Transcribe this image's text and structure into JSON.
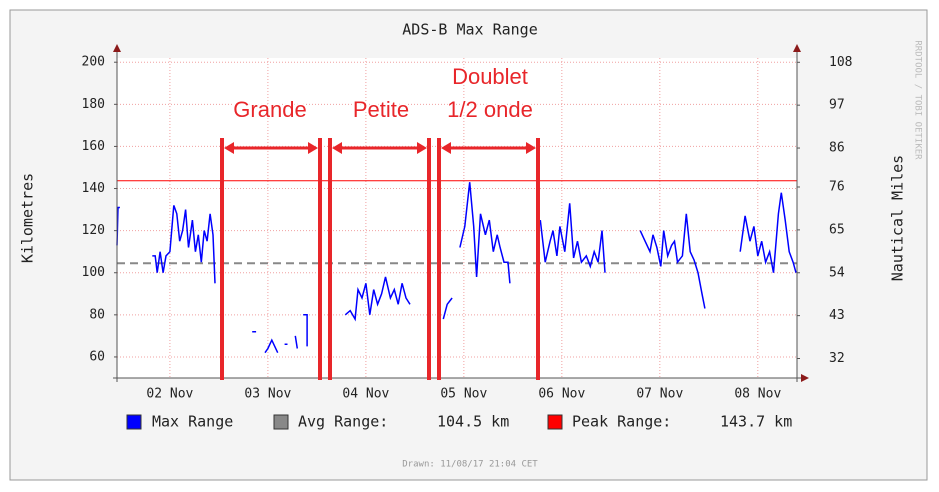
{
  "chart_data": {
    "type": "line",
    "title": "ADS-B Max Range",
    "y_label": "Kilometres",
    "y2_label": "Nautical Miles",
    "watermark": "RRDTOOL / TOBI OETIKER",
    "footer": "Drawn: 11/08/17 21:04 CET",
    "grid": true,
    "xlim": [
      1.96,
      8.9
    ],
    "xticks": [
      {
        "value": 2.5,
        "label": "02 Nov"
      },
      {
        "value": 3.5,
        "label": "03 Nov"
      },
      {
        "value": 4.5,
        "label": "04 Nov"
      },
      {
        "value": 5.5,
        "label": "05 Nov"
      },
      {
        "value": 6.5,
        "label": "06 Nov"
      },
      {
        "value": 7.5,
        "label": "07 Nov"
      },
      {
        "value": 8.5,
        "label": "08 Nov"
      }
    ],
    "ylim": [
      50,
      202
    ],
    "yticks": [
      60,
      80,
      100,
      120,
      140,
      160,
      180,
      200
    ],
    "y2lim": [
      27,
      109.1
    ],
    "y2ticks": [
      32,
      43,
      54,
      65,
      76,
      86,
      97,
      108
    ],
    "x": [
      1.96,
      1.97,
      1.99,
      2.1,
      2.32,
      2.35,
      2.37,
      2.4,
      2.43,
      2.46,
      2.5,
      2.54,
      2.57,
      2.6,
      2.63,
      2.66,
      2.69,
      2.73,
      2.76,
      2.79,
      2.82,
      2.85,
      2.88,
      2.91,
      2.94,
      2.96,
      3.1,
      3.34,
      3.38,
      3.42,
      3.47,
      3.5,
      3.54,
      3.6,
      3.63,
      3.67,
      3.7,
      3.74,
      3.78,
      3.8,
      3.83,
      3.86,
      3.9,
      3.9,
      4.1,
      4.29,
      4.34,
      4.39,
      4.42,
      4.46,
      4.5,
      4.54,
      4.58,
      4.62,
      4.66,
      4.7,
      4.75,
      4.79,
      4.83,
      4.87,
      4.91,
      4.95,
      5.1,
      5.29,
      5.33,
      5.38,
      5.42,
      5.46,
      5.51,
      5.56,
      5.6,
      5.63,
      5.67,
      5.72,
      5.76,
      5.8,
      5.84,
      5.87,
      5.91,
      5.95,
      5.97,
      6.1,
      6.28,
      6.33,
      6.38,
      6.41,
      6.45,
      6.48,
      6.53,
      6.58,
      6.62,
      6.66,
      6.7,
      6.75,
      6.79,
      6.83,
      6.87,
      6.91,
      6.94,
      7.1,
      7.3,
      7.35,
      7.4,
      7.43,
      7.47,
      7.51,
      7.54,
      7.58,
      7.62,
      7.65,
      7.68,
      7.73,
      7.77,
      7.81,
      7.85,
      7.89,
      7.93,
      7.96,
      8.1,
      8.32,
      8.37,
      8.42,
      8.46,
      8.5,
      8.54,
      8.58,
      8.62,
      8.66,
      8.71,
      8.74,
      8.78,
      8.82,
      8.86,
      8.89
    ],
    "series": [
      {
        "name": "Max Range",
        "color": "#0000ff",
        "values": [
          113,
          131,
          131,
          null,
          108,
          108,
          100,
          110,
          100,
          108,
          110,
          132,
          128,
          115,
          120,
          130,
          112,
          125,
          110,
          118,
          105,
          120,
          115,
          128,
          118,
          95,
          null,
          72,
          72,
          null,
          62,
          64,
          68,
          62,
          null,
          66,
          66,
          null,
          70,
          64,
          null,
          80,
          80,
          65,
          null,
          80,
          82,
          78,
          92,
          88,
          95,
          80,
          92,
          85,
          90,
          98,
          88,
          92,
          85,
          95,
          88,
          85,
          null,
          78,
          85,
          88,
          null,
          112,
          122,
          143,
          122,
          98,
          128,
          118,
          125,
          110,
          118,
          112,
          105,
          105,
          95,
          null,
          125,
          105,
          115,
          120,
          108,
          122,
          110,
          133,
          107,
          115,
          105,
          108,
          103,
          110,
          105,
          120,
          100,
          null,
          120,
          115,
          110,
          118,
          112,
          103,
          120,
          108,
          113,
          115,
          105,
          108,
          128,
          110,
          106,
          100,
          90,
          83,
          null,
          110,
          127,
          115,
          122,
          108,
          115,
          105,
          110,
          100,
          128,
          138,
          125,
          110,
          105,
          100
        ]
      }
    ],
    "reference_lines": [
      {
        "name": "Avg Range:",
        "value": 104.5,
        "value_label": "104.5 km",
        "color": "#888888",
        "style": "dashed"
      },
      {
        "name": "Peak Range:",
        "value": 143.7,
        "value_label": "143.7 km",
        "color": "#ff0000",
        "style": "solid"
      }
    ],
    "annotations": [
      "Grande",
      "Petite",
      "Doublet",
      "1/2 onde"
    ]
  }
}
